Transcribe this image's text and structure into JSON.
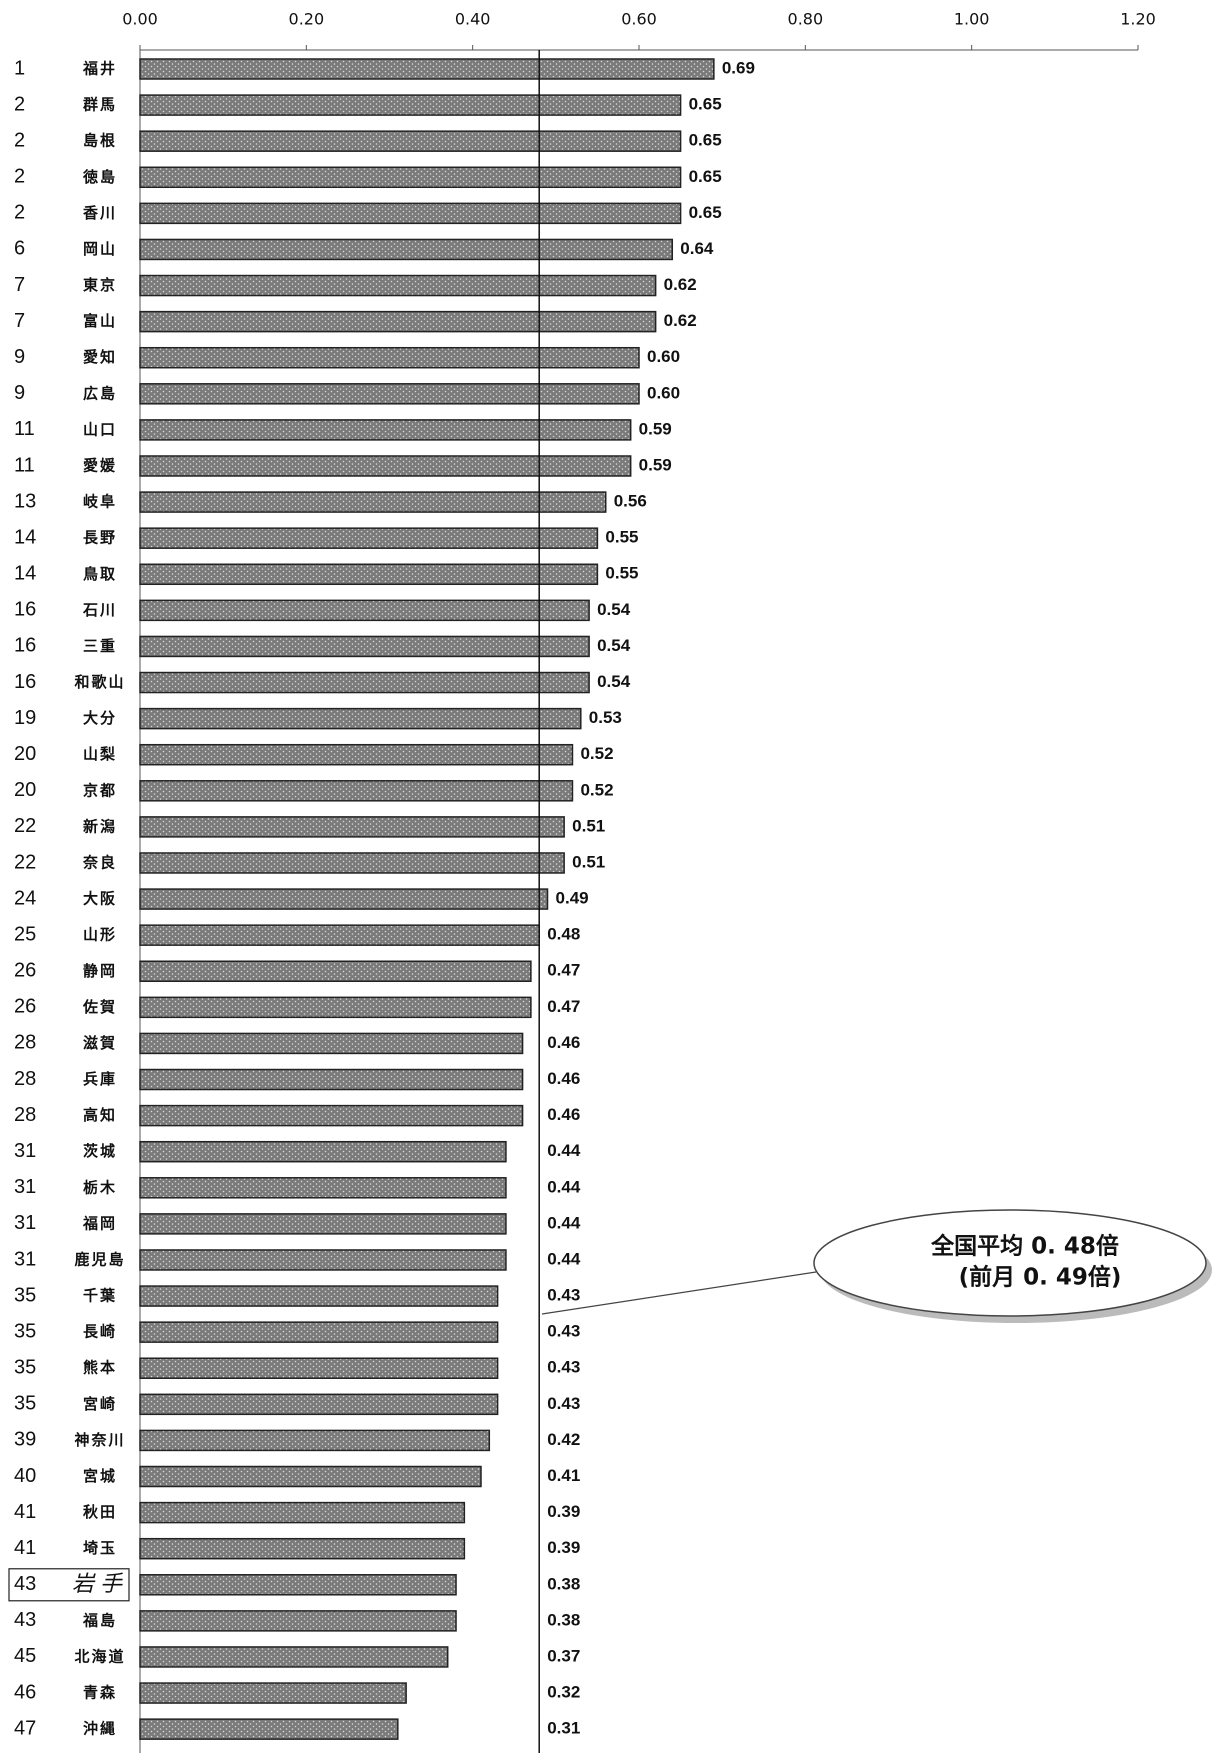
{
  "chart_data": {
    "type": "bar",
    "orientation": "horizontal",
    "ranks": [
      1,
      2,
      2,
      2,
      2,
      6,
      7,
      7,
      9,
      9,
      11,
      11,
      13,
      14,
      14,
      16,
      16,
      16,
      19,
      20,
      20,
      22,
      22,
      24,
      25,
      26,
      26,
      28,
      28,
      28,
      31,
      31,
      31,
      31,
      35,
      35,
      35,
      35,
      39,
      40,
      41,
      41,
      43,
      43,
      45,
      46,
      47
    ],
    "categories": [
      "福井",
      "群馬",
      "島根",
      "徳島",
      "香川",
      "岡山",
      "東京",
      "富山",
      "愛知",
      "広島",
      "山口",
      "愛媛",
      "岐阜",
      "長野",
      "鳥取",
      "石川",
      "三重",
      "和歌山",
      "大分",
      "山梨",
      "京都",
      "新潟",
      "奈良",
      "大阪",
      "山形",
      "静岡",
      "佐賀",
      "滋賀",
      "兵庫",
      "高知",
      "茨城",
      "栃木",
      "福岡",
      "鹿児島",
      "千葉",
      "長崎",
      "熊本",
      "宮崎",
      "神奈川",
      "宮城",
      "秋田",
      "埼玉",
      "岩手",
      "福島",
      "北海道",
      "青森",
      "沖縄"
    ],
    "values": [
      0.69,
      0.65,
      0.65,
      0.65,
      0.65,
      0.64,
      0.62,
      0.62,
      0.6,
      0.6,
      0.59,
      0.59,
      0.56,
      0.55,
      0.55,
      0.54,
      0.54,
      0.54,
      0.53,
      0.52,
      0.52,
      0.51,
      0.51,
      0.49,
      0.48,
      0.47,
      0.47,
      0.46,
      0.46,
      0.46,
      0.44,
      0.44,
      0.44,
      0.44,
      0.43,
      0.43,
      0.43,
      0.43,
      0.42,
      0.41,
      0.39,
      0.39,
      0.38,
      0.38,
      0.37,
      0.32,
      0.31
    ],
    "value_labels": [
      "0.69",
      "0.65",
      "0.65",
      "0.65",
      "0.65",
      "0.64",
      "0.62",
      "0.62",
      "0.60",
      "0.60",
      "0.59",
      "0.59",
      "0.56",
      "0.55",
      "0.55",
      "0.54",
      "0.54",
      "0.54",
      "0.53",
      "0.52",
      "0.52",
      "0.51",
      "0.51",
      "0.49",
      "0.48",
      "0.47",
      "0.47",
      "0.46",
      "0.46",
      "0.46",
      "0.44",
      "0.44",
      "0.44",
      "0.44",
      "0.43",
      "0.43",
      "0.43",
      "0.43",
      "0.42",
      "0.41",
      "0.39",
      "0.39",
      "0.38",
      "0.38",
      "0.37",
      "0.32",
      "0.31"
    ],
    "color": "#777777",
    "highlight": 42,
    "xlim": [
      0,
      1.2
    ],
    "xticks": [
      {
        "value": 0,
        "label": "0.00"
      },
      {
        "value": 0.2,
        "label": "0.20"
      },
      {
        "value": 0.4,
        "label": "0.40"
      },
      {
        "value": 0.6,
        "label": "0.60"
      },
      {
        "value": 0.8,
        "label": "0.80"
      },
      {
        "value": 1.0,
        "label": "1.00"
      },
      {
        "value": 1.2,
        "label": "1.20"
      }
    ],
    "average": 0.48,
    "annotations": [
      "全国平均 0. 48倍",
      "(前月 0. 49倍)"
    ]
  }
}
